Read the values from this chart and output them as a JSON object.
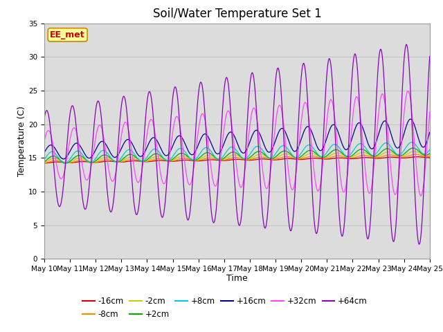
{
  "title": "Soil/Water Temperature Set 1",
  "xlabel": "Time",
  "ylabel": "Temperature (C)",
  "ylim": [
    0,
    35
  ],
  "yticks": [
    0,
    5,
    10,
    15,
    20,
    25,
    30,
    35
  ],
  "plot_bg_color": "#dcdcdc",
  "annotation_text": "EE_met",
  "annotation_bg": "#ffff99",
  "annotation_border": "#cc8800",
  "annotation_text_color": "#cc0000",
  "xtick_labels": [
    "May 10",
    "May 11",
    "May 12",
    "May 13",
    "May 14",
    "May 15",
    "May 16",
    "May 17",
    "May 18",
    "May 19",
    "May 20",
    "May 21",
    "May 22",
    "May 23",
    "May 24",
    "May 25"
  ],
  "grid_color": "#c0c0c0",
  "title_fontsize": 12,
  "axis_label_fontsize": 9,
  "tick_fontsize": 7.5,
  "legend_fontsize": 8.5,
  "colors": {
    "-16cm": "#cc0000",
    "-8cm": "#ff8800",
    "-2cm": "#cccc00",
    "+2cm": "#00aa00",
    "+8cm": "#00cccc",
    "+16cm": "#000099",
    "+32cm": "#ff44ff",
    "+64cm": "#8800bb"
  }
}
